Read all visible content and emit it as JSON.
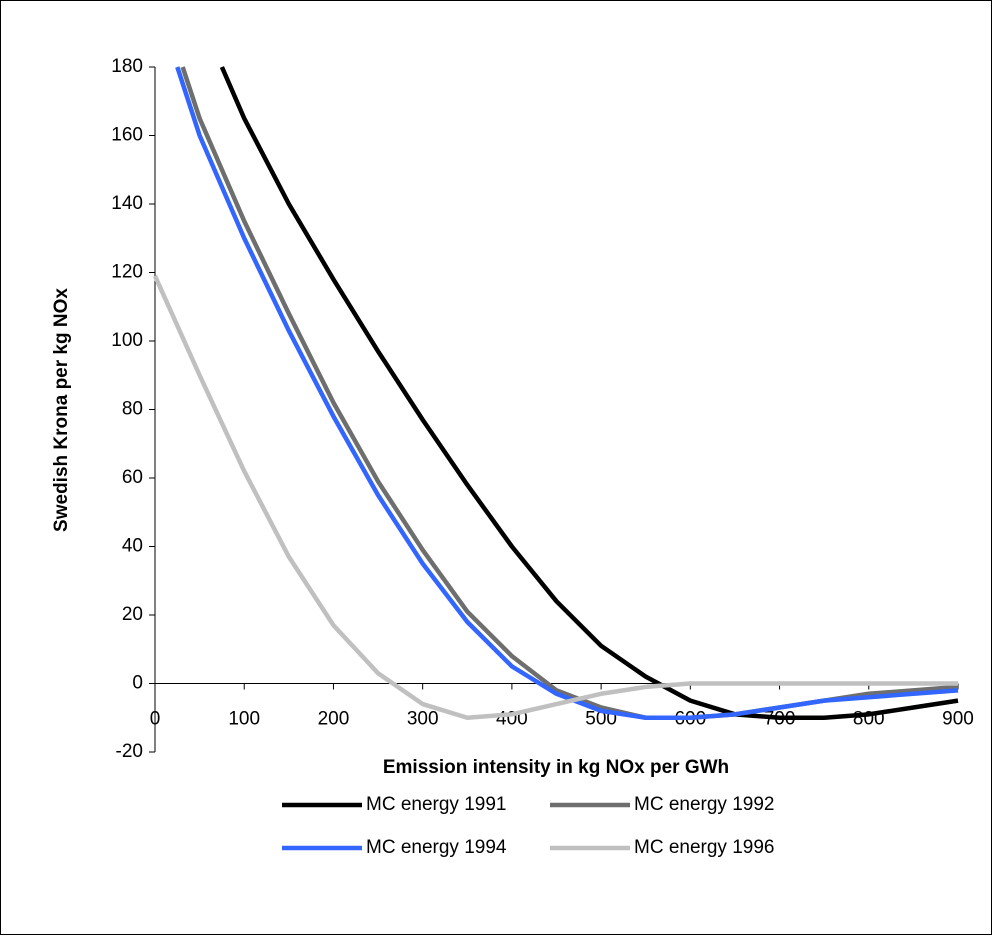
{
  "chart_data": {
    "type": "line",
    "xlabel": "Emission intensity in kg NOx per GWh",
    "ylabel": "Swedish Krona per kg NOx",
    "xlim": [
      0,
      900
    ],
    "xticks": [
      0,
      100,
      200,
      300,
      400,
      500,
      600,
      700,
      800,
      900
    ],
    "ylim": [
      -20,
      180
    ],
    "yticks": [
      -20,
      0,
      20,
      40,
      60,
      80,
      100,
      120,
      140,
      160,
      180
    ],
    "grid": false,
    "legend": "bottom",
    "series": [
      {
        "name": "MC energy 1991",
        "color": "#000000",
        "x": [
          75,
          100,
          150,
          200,
          250,
          300,
          350,
          400,
          450,
          500,
          550,
          600,
          650,
          700,
          750,
          800,
          850,
          900
        ],
        "values": [
          180,
          165,
          140,
          118,
          97,
          77,
          58,
          40,
          24,
          11,
          2,
          -5,
          -9,
          -10,
          -10,
          -9,
          -7,
          -5
        ]
      },
      {
        "name": "MC energy 1992",
        "color": "#6e6e6e",
        "x": [
          31,
          50,
          100,
          150,
          200,
          250,
          300,
          350,
          400,
          450,
          500,
          550,
          600,
          650,
          700,
          750,
          800,
          850,
          900
        ],
        "values": [
          180,
          165,
          135,
          108,
          82,
          59,
          39,
          21,
          8,
          -2,
          -7,
          -10,
          -10,
          -9,
          -7,
          -5,
          -3,
          -2,
          -1
        ]
      },
      {
        "name": "MC energy 1994",
        "color": "#3366ff",
        "x": [
          25,
          50,
          100,
          150,
          200,
          250,
          300,
          350,
          400,
          450,
          500,
          550,
          600,
          650,
          700,
          750,
          800,
          850,
          900
        ],
        "values": [
          180,
          160,
          130,
          103,
          78,
          55,
          35,
          18,
          5,
          -3,
          -8,
          -10,
          -10,
          -9,
          -7,
          -5,
          -4,
          -3,
          -2
        ]
      },
      {
        "name": "MC energy 1996",
        "color": "#c0c0c0",
        "x": [
          0,
          50,
          100,
          150,
          200,
          250,
          300,
          350,
          400,
          450,
          500,
          550,
          600,
          650,
          700,
          800,
          900
        ],
        "values": [
          119,
          90,
          62,
          37,
          17,
          3,
          -6,
          -10,
          -9,
          -6,
          -3,
          -1,
          0,
          0,
          0,
          0,
          0
        ]
      }
    ]
  }
}
